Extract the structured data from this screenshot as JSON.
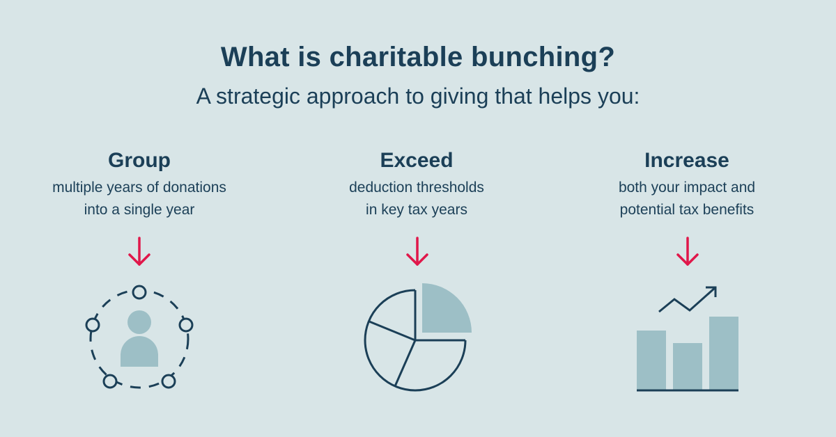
{
  "title": "What is charitable bunching?",
  "subtitle": "A strategic approach to giving that helps you:",
  "columns": [
    {
      "heading": "Group",
      "line1": "multiple years of donations",
      "line2": "into a single year",
      "icon": "people-circle-icon"
    },
    {
      "heading": "Exceed",
      "line1": "deduction thresholds",
      "line2": "in key tax years",
      "icon": "pie-chart-icon"
    },
    {
      "heading": "Increase",
      "line1": "both your impact and",
      "line2": "potential tax benefits",
      "icon": "bar-chart-growth-icon"
    }
  ],
  "colors": {
    "background": "#d8e5e7",
    "text": "#1b3f57",
    "accent": "#e0174a",
    "fill": "#9dbfc6"
  }
}
